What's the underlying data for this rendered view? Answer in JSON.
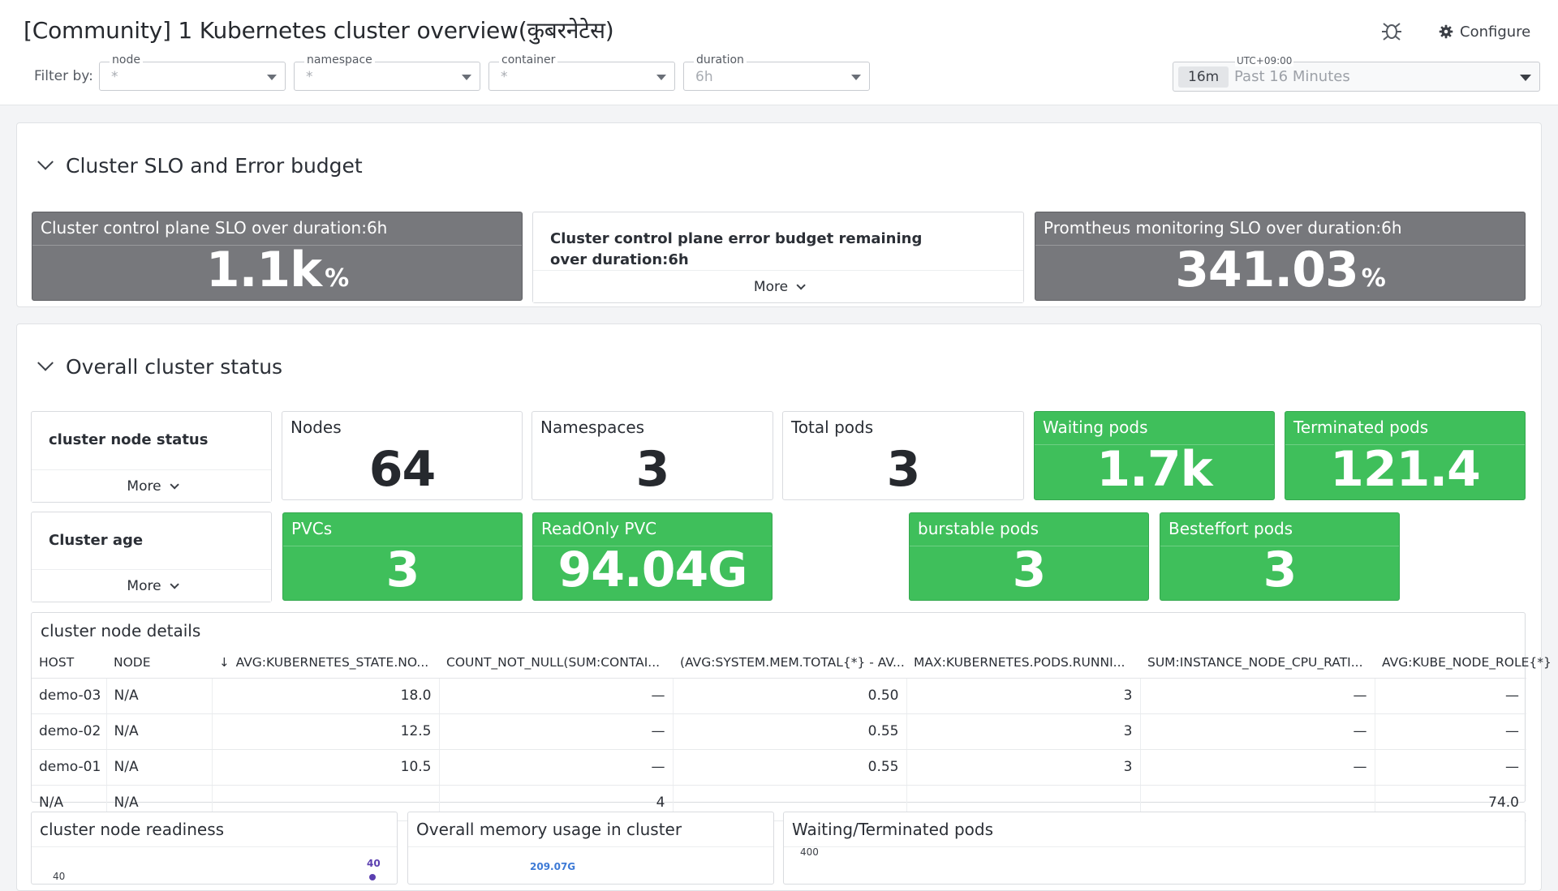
{
  "header": {
    "title": "[Community] 1 Kubernetes cluster overview(कुबरनेटेस)",
    "configure_label": "Configure",
    "filter_label": "Filter by:",
    "filters": [
      {
        "legend": "node",
        "value": "*"
      },
      {
        "legend": "namespace",
        "value": "*"
      },
      {
        "legend": "container",
        "value": "*"
      },
      {
        "legend": "duration",
        "value": "6h"
      }
    ],
    "timezone": "UTC+09:00",
    "time_pill": "16m",
    "time_label": "Past 16 Minutes"
  },
  "slo_group": {
    "title": "Cluster SLO and Error budget",
    "widgets": [
      {
        "title": "Cluster control plane SLO over duration:6h",
        "value": "1.1k",
        "unit": "%"
      },
      {
        "title": "Cluster control plane error budget remaining over duration:6h",
        "more": "More"
      },
      {
        "title": "Promtheus monitoring SLO over duration:6h",
        "value": "341.03",
        "unit": "%"
      }
    ]
  },
  "status_group": {
    "title": "Overall cluster status",
    "node_status": {
      "title": "cluster node status",
      "more": "More"
    },
    "cluster_age": {
      "title": "Cluster age",
      "more": "More"
    },
    "nodes": {
      "title": "Nodes",
      "value": "64"
    },
    "namespaces": {
      "title": "Namespaces",
      "value": "3"
    },
    "total_pods": {
      "title": "Total pods",
      "value": "3"
    },
    "waiting_pods": {
      "title": "Waiting pods",
      "value": "1.7k"
    },
    "terminated_pods": {
      "title": "Terminated pods",
      "value": "121.4"
    },
    "pvcs": {
      "title": "PVCs",
      "value": "3"
    },
    "readonly_pvc": {
      "title": "ReadOnly PVC",
      "value": "94.04G"
    },
    "burstable_pods": {
      "title": "burstable pods",
      "value": "3"
    },
    "besteffort_pods": {
      "title": "Besteffort pods",
      "value": "3"
    }
  },
  "node_details": {
    "title": "cluster node details",
    "columns": [
      "HOST",
      "NODE",
      "AVG:KUBERNETES_STATE.NO...",
      "COUNT_NOT_NULL(SUM:CONTAI...",
      "(AVG:SYSTEM.MEM.TOTAL{*} - AV...",
      "MAX:KUBERNETES.PODS.RUNNI...",
      "SUM:INSTANCE_NODE_CPU_RATI...",
      "AVG:KUBE_NODE_ROLE{*}"
    ],
    "rows": [
      [
        "demo-03",
        "N/A",
        "18.0",
        "—",
        "0.50",
        "3",
        "—",
        "—"
      ],
      [
        "demo-02",
        "N/A",
        "12.5",
        "—",
        "0.55",
        "3",
        "—",
        "—"
      ],
      [
        "demo-01",
        "N/A",
        "10.5",
        "—",
        "0.55",
        "3",
        "—",
        "—"
      ],
      [
        "N/A",
        "N/A",
        "",
        "4",
        "",
        "",
        "",
        "74.0"
      ]
    ]
  },
  "bottom_panels": {
    "readiness": {
      "title": "cluster node readiness",
      "y_tick": "40",
      "peak_label": "40"
    },
    "memory": {
      "title": "Overall memory usage in cluster",
      "peak_label": "209.07G"
    },
    "waiting_terminated": {
      "title": "Waiting/Terminated pods",
      "y_tick": "400"
    }
  },
  "colors": {
    "green": "#3fbf5b",
    "gray": "#77787c",
    "blue_label": "#3d7ad6",
    "purple_label": "#5b3fb0"
  }
}
